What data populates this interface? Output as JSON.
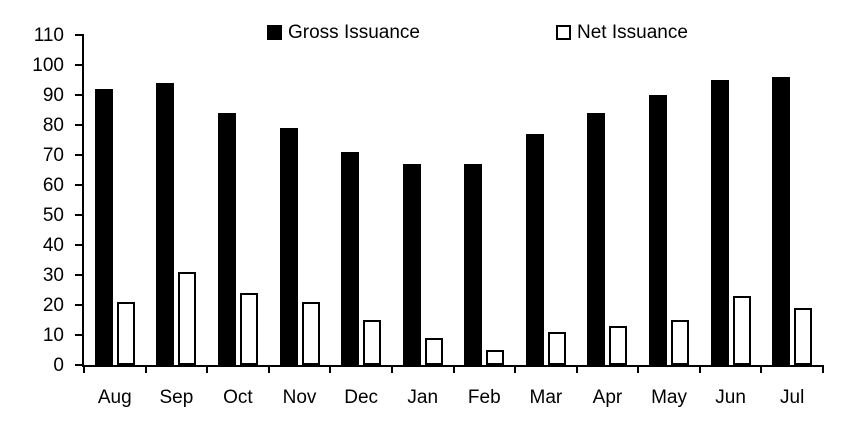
{
  "chart_data": {
    "type": "bar",
    "title": "",
    "xlabel": "",
    "ylabel": "",
    "categories": [
      "Aug",
      "Sep",
      "Oct",
      "Nov",
      "Dec",
      "Jan",
      "Feb",
      "Mar",
      "Apr",
      "May",
      "Jun",
      "Jul"
    ],
    "series": [
      {
        "name": "Gross Issuance",
        "style": "filled",
        "color": "#000000",
        "values": [
          92,
          94,
          84,
          79,
          71,
          67,
          67,
          77,
          84,
          90,
          95,
          96
        ]
      },
      {
        "name": "Net Issuance",
        "style": "hollow",
        "color": "#ffffff",
        "values": [
          21,
          31,
          24,
          21,
          15,
          9,
          5,
          11,
          13,
          15,
          23,
          19
        ]
      }
    ],
    "ylim": [
      0,
      110
    ],
    "yticks": [
      0,
      10,
      20,
      30,
      40,
      50,
      60,
      70,
      80,
      90,
      100,
      110
    ],
    "grid": "off",
    "legend_position": "top"
  },
  "legend": {
    "gross_label": "Gross Issuance",
    "net_label": "Net Issuance"
  },
  "colors": {
    "gross_bar": "#000000",
    "net_bar_fill": "#ffffff",
    "net_bar_border": "#000000",
    "axis": "#000000",
    "text": "#000000",
    "background": "#ffffff"
  }
}
